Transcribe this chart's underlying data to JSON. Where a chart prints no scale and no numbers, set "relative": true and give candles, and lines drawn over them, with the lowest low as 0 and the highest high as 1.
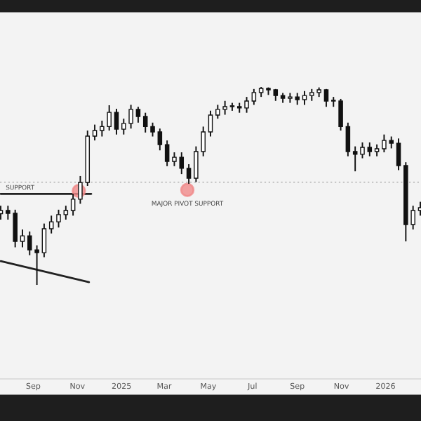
{
  "chart_data": {
    "type": "candlestick",
    "relative": true,
    "tick_labels": "x",
    "grid": false,
    "legend": false,
    "x": [
      "2024-07-18",
      "2024-07-28",
      "2024-08-07",
      "2024-08-17",
      "2024-08-27",
      "2024-09-06",
      "2024-09-16",
      "2024-09-26",
      "2024-10-06",
      "2024-10-16",
      "2024-10-26",
      "2024-11-05",
      "2024-11-15",
      "2024-11-25",
      "2024-12-05",
      "2024-12-15",
      "2024-12-25",
      "2025-01-04",
      "2025-01-14",
      "2025-01-24",
      "2025-02-03",
      "2025-02-13",
      "2025-02-23",
      "2025-03-05",
      "2025-03-15",
      "2025-03-25",
      "2025-04-04",
      "2025-04-14",
      "2025-04-24",
      "2025-05-04",
      "2025-05-14",
      "2025-05-24",
      "2025-06-03",
      "2025-06-13",
      "2025-06-23",
      "2025-07-03",
      "2025-07-13",
      "2025-07-23",
      "2025-08-02",
      "2025-08-12",
      "2025-08-22",
      "2025-09-01",
      "2025-09-11",
      "2025-09-21",
      "2025-10-01",
      "2025-10-11",
      "2025-10-21",
      "2025-10-31",
      "2025-11-10",
      "2025-11-20",
      "2025-11-30",
      "2025-12-10",
      "2025-12-20",
      "2025-12-30",
      "2026-01-09",
      "2026-01-19",
      "2026-01-29",
      "2026-02-08",
      "2026-02-18"
    ],
    "ohlc": [
      [
        0.36,
        0.4,
        0.33,
        0.376
      ],
      [
        0.376,
        0.4,
        0.33,
        0.362
      ],
      [
        0.362,
        0.38,
        0.19,
        0.22
      ],
      [
        0.22,
        0.28,
        0.19,
        0.248
      ],
      [
        0.248,
        0.27,
        0.15,
        0.177
      ],
      [
        0.177,
        0.2,
        0.0,
        0.163
      ],
      [
        0.163,
        0.31,
        0.14,
        0.284
      ],
      [
        0.284,
        0.35,
        0.26,
        0.319
      ],
      [
        0.319,
        0.38,
        0.29,
        0.355
      ],
      [
        0.355,
        0.4,
        0.33,
        0.376
      ],
      [
        0.376,
        0.46,
        0.35,
        0.433
      ],
      [
        0.433,
        0.55,
        0.41,
        0.518
      ],
      [
        0.518,
        0.78,
        0.5,
        0.752
      ],
      [
        0.752,
        0.81,
        0.73,
        0.78
      ],
      [
        0.78,
        0.83,
        0.75,
        0.8
      ],
      [
        0.8,
        0.908,
        0.78,
        0.872
      ],
      [
        0.872,
        0.89,
        0.76,
        0.787
      ],
      [
        0.787,
        0.84,
        0.76,
        0.816
      ],
      [
        0.816,
        0.91,
        0.79,
        0.887
      ],
      [
        0.887,
        0.9,
        0.82,
        0.851
      ],
      [
        0.851,
        0.87,
        0.77,
        0.8
      ],
      [
        0.8,
        0.82,
        0.75,
        0.773
      ],
      [
        0.773,
        0.79,
        0.68,
        0.709
      ],
      [
        0.709,
        0.73,
        0.6,
        0.624
      ],
      [
        0.624,
        0.67,
        0.6,
        0.645
      ],
      [
        0.645,
        0.67,
        0.56,
        0.589
      ],
      [
        0.589,
        0.61,
        0.511,
        0.539
      ],
      [
        0.539,
        0.7,
        0.52,
        0.674
      ],
      [
        0.674,
        0.8,
        0.65,
        0.773
      ],
      [
        0.773,
        0.88,
        0.75,
        0.858
      ],
      [
        0.858,
        0.91,
        0.84,
        0.887
      ],
      [
        0.887,
        0.93,
        0.86,
        0.901
      ],
      [
        0.901,
        0.92,
        0.88,
        0.901
      ],
      [
        0.901,
        0.92,
        0.87,
        0.894
      ],
      [
        0.894,
        0.95,
        0.87,
        0.929
      ],
      [
        0.929,
        0.99,
        0.91,
        0.972
      ],
      [
        0.972,
        1.0,
        0.95,
        0.993
      ],
      [
        0.993,
        0.998,
        0.96,
        0.986
      ],
      [
        0.986,
        0.99,
        0.93,
        0.957
      ],
      [
        0.957,
        0.97,
        0.92,
        0.943
      ],
      [
        0.943,
        0.97,
        0.92,
        0.95
      ],
      [
        0.95,
        0.97,
        0.91,
        0.936
      ],
      [
        0.936,
        0.98,
        0.91,
        0.957
      ],
      [
        0.957,
        0.99,
        0.93,
        0.972
      ],
      [
        0.972,
        0.998,
        0.95,
        0.986
      ],
      [
        0.986,
        0.99,
        0.9,
        0.929
      ],
      [
        0.929,
        0.95,
        0.9,
        0.929
      ],
      [
        0.929,
        0.94,
        0.78,
        0.8
      ],
      [
        0.8,
        0.82,
        0.65,
        0.674
      ],
      [
        0.674,
        0.7,
        0.574,
        0.66
      ],
      [
        0.66,
        0.72,
        0.64,
        0.695
      ],
      [
        0.695,
        0.72,
        0.65,
        0.674
      ],
      [
        0.674,
        0.71,
        0.65,
        0.688
      ],
      [
        0.688,
        0.76,
        0.67,
        0.73
      ],
      [
        0.73,
        0.75,
        0.69,
        0.716
      ],
      [
        0.716,
        0.74,
        0.58,
        0.603
      ],
      [
        0.603,
        0.62,
        0.22,
        0.305
      ],
      [
        0.305,
        0.4,
        0.28,
        0.376
      ],
      [
        0.376,
        0.42,
        0.35,
        0.39
      ]
    ],
    "series": [
      {
        "type": "line",
        "x": [
          "2024-07-18",
          "2024-11-17"
        ],
        "values": [
          0.12,
          0.014
        ],
        "color": "#222222"
      },
      {
        "type": "line",
        "x": [
          "2024-07-18",
          "2024-11-20"
        ],
        "values": [
          0.46,
          0.46
        ],
        "color": "#222222"
      },
      {
        "type": "scatter",
        "x": [
          "2024-11-03",
          "2025-04-02"
        ],
        "values": [
          0.475,
          0.48
        ],
        "color": "#f08a8a"
      }
    ],
    "ref_lines": [
      {
        "axis": "y",
        "value": 0.518,
        "color": "#c8c8c8",
        "line_style": "dotted"
      }
    ],
    "annotations": [
      {
        "text": "SUPPORT",
        "x": "2024-07-25",
        "y": 0.475
      },
      {
        "text": "MAJOR PIVOT SUPPORT",
        "x": "2025-04-02",
        "y": 0.425
      }
    ],
    "xlim": [
      "2024-07-17",
      "2026-02-19"
    ],
    "xticks": [
      {
        "value": "2024-09-01",
        "label": "Sep"
      },
      {
        "value": "2024-11-01",
        "label": "Nov"
      },
      {
        "value": "2025-01-01",
        "label": "2025"
      },
      {
        "value": "2025-03-01",
        "label": "Mar"
      },
      {
        "value": "2025-05-01",
        "label": "May"
      },
      {
        "value": "2025-07-01",
        "label": "Jul"
      },
      {
        "value": "2025-09-01",
        "label": "Sep"
      },
      {
        "value": "2025-11-01",
        "label": "Nov"
      },
      {
        "value": "2026-01-01",
        "label": "2026"
      }
    ]
  }
}
